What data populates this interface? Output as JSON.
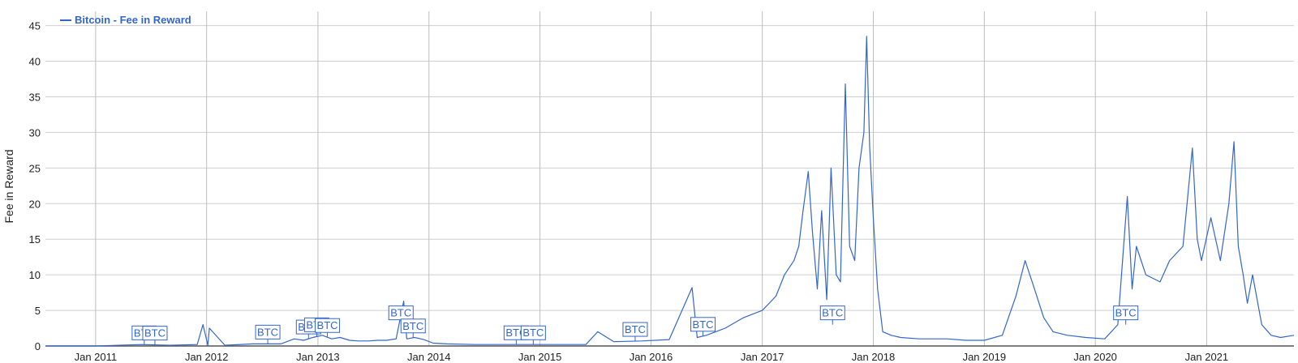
{
  "chart_data": {
    "type": "line",
    "title": "",
    "ylabel": "Fee in Reward",
    "xlabel": "",
    "ylim": [
      0,
      47
    ],
    "xlim": [
      "2010-07-20",
      "2021-10-15"
    ],
    "yticks": [
      0,
      5,
      10,
      15,
      20,
      25,
      30,
      35,
      40,
      45
    ],
    "xticks": [
      {
        "date": "2011-01-01",
        "label": "Jan 2011"
      },
      {
        "date": "2012-01-01",
        "label": "Jan 2012"
      },
      {
        "date": "2013-01-01",
        "label": "Jan 2013"
      },
      {
        "date": "2014-01-01",
        "label": "Jan 2014"
      },
      {
        "date": "2015-01-01",
        "label": "Jan 2015"
      },
      {
        "date": "2016-01-01",
        "label": "Jan 2016"
      },
      {
        "date": "2017-01-01",
        "label": "Jan 2017"
      },
      {
        "date": "2018-01-01",
        "label": "Jan 2018"
      },
      {
        "date": "2019-01-01",
        "label": "Jan 2019"
      },
      {
        "date": "2020-01-01",
        "label": "Jan 2020"
      },
      {
        "date": "2021-01-01",
        "label": "Jan 2021"
      }
    ],
    "grid": true,
    "legend_position": "top-left",
    "series": [
      {
        "name": "Bitcoin - Fee in Reward",
        "color": "#3366cc",
        "x": [
          "2010-07-20",
          "2011-01-01",
          "2011-06-01",
          "2011-09-01",
          "2011-12-01",
          "2011-12-20",
          "2012-01-05",
          "2012-01-10",
          "2012-03-01",
          "2012-06-01",
          "2012-09-01",
          "2012-10-15",
          "2012-11-15",
          "2012-12-15",
          "2013-01-15",
          "2013-02-15",
          "2013-03-15",
          "2013-04-15",
          "2013-05-15",
          "2013-06-15",
          "2013-07-15",
          "2013-08-15",
          "2013-09-15",
          "2013-10-10",
          "2013-10-20",
          "2013-11-15",
          "2013-12-15",
          "2014-01-15",
          "2014-03-01",
          "2014-06-01",
          "2014-09-01",
          "2014-12-01",
          "2015-03-01",
          "2015-06-01",
          "2015-07-10",
          "2015-09-01",
          "2015-12-01",
          "2016-03-01",
          "2016-05-15",
          "2016-06-01",
          "2016-07-01",
          "2016-09-01",
          "2016-11-01",
          "2017-01-01",
          "2017-02-15",
          "2017-03-15",
          "2017-04-15",
          "2017-05-01",
          "2017-05-15",
          "2017-06-01",
          "2017-06-15",
          "2017-07-01",
          "2017-07-15",
          "2017-08-01",
          "2017-08-15",
          "2017-09-01",
          "2017-09-15",
          "2017-10-01",
          "2017-10-15",
          "2017-11-01",
          "2017-11-15",
          "2017-12-01",
          "2017-12-10",
          "2017-12-20",
          "2018-01-01",
          "2018-01-15",
          "2018-02-01",
          "2018-03-01",
          "2018-04-01",
          "2018-06-01",
          "2018-09-01",
          "2018-11-01",
          "2019-01-01",
          "2019-03-01",
          "2019-04-15",
          "2019-05-15",
          "2019-06-15",
          "2019-07-15",
          "2019-08-15",
          "2019-10-01",
          "2019-12-01",
          "2020-02-01",
          "2020-03-15",
          "2020-04-15",
          "2020-05-01",
          "2020-05-15",
          "2020-06-15",
          "2020-08-01",
          "2020-09-01",
          "2020-10-15",
          "2020-11-15",
          "2020-12-01",
          "2020-12-15",
          "2021-01-15",
          "2021-02-15",
          "2021-03-15",
          "2021-04-01",
          "2021-04-15",
          "2021-05-01",
          "2021-05-15",
          "2021-06-01",
          "2021-07-01",
          "2021-08-01",
          "2021-09-01",
          "2021-10-15"
        ],
        "y": [
          0,
          0,
          0.2,
          0.1,
          0.2,
          3.0,
          0.1,
          2.5,
          0.1,
          0.3,
          0.3,
          1.0,
          0.8,
          1.2,
          1.5,
          1.0,
          1.2,
          0.8,
          0.7,
          0.7,
          0.8,
          0.8,
          1.0,
          6.3,
          1.0,
          1.2,
          0.9,
          0.4,
          0.3,
          0.2,
          0.2,
          0.2,
          0.2,
          0.2,
          2.0,
          0.6,
          0.7,
          0.9,
          8.2,
          1.2,
          1.5,
          2.5,
          4.0,
          5.0,
          7.0,
          10.0,
          12.0,
          14.0,
          19.0,
          24.5,
          16.0,
          8.0,
          19.0,
          6.5,
          25.0,
          10.0,
          9.0,
          36.8,
          14.0,
          12.0,
          25.0,
          30.0,
          43.5,
          28.0,
          18.0,
          8.0,
          2.0,
          1.5,
          1.2,
          1.0,
          1.0,
          0.8,
          0.8,
          1.5,
          7.0,
          12.0,
          8.0,
          4.0,
          2.0,
          1.5,
          1.2,
          1.0,
          3.0,
          21.0,
          8.0,
          14.0,
          10.0,
          9.0,
          12.0,
          14.0,
          27.8,
          15.0,
          12.0,
          18.0,
          12.0,
          20.0,
          28.7,
          14.0,
          10.0,
          6.0,
          10.0,
          3.0,
          1.5,
          1.2,
          1.5
        ]
      }
    ],
    "flags": [
      {
        "date": "2011-06-10",
        "text": "BTC"
      },
      {
        "date": "2011-07-15",
        "text": "BTC"
      },
      {
        "date": "2012-07-20",
        "text": "BTC"
      },
      {
        "date": "2012-12-01",
        "text": "BTC"
      },
      {
        "date": "2012-12-28",
        "text": "BTC"
      },
      {
        "date": "2013-02-01",
        "text": "BTC"
      },
      {
        "date": "2013-10-01",
        "text": "BTC"
      },
      {
        "date": "2013-11-10",
        "text": "BTC"
      },
      {
        "date": "2014-10-15",
        "text": "BTC"
      },
      {
        "date": "2014-12-10",
        "text": "BTC"
      },
      {
        "date": "2015-11-10",
        "text": "BTC"
      },
      {
        "date": "2016-06-20",
        "text": "BTC"
      },
      {
        "date": "2017-08-20",
        "text": "BTC"
      },
      {
        "date": "2020-04-10",
        "text": "BTC"
      }
    ]
  }
}
